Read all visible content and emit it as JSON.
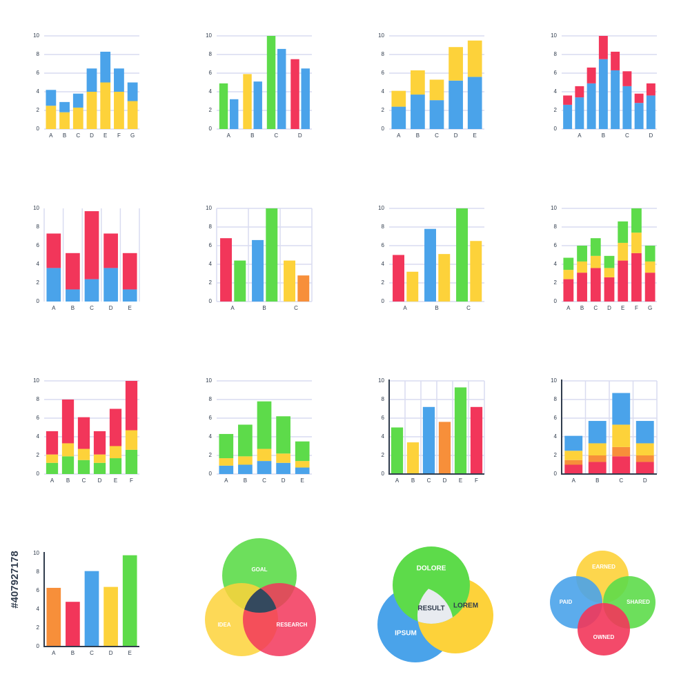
{
  "chart_data": [
    {
      "type": "bar",
      "stacked": true,
      "grid": "horizontal",
      "ylim": [
        0,
        10
      ],
      "yticks": [
        0,
        2,
        4,
        6,
        8,
        10
      ],
      "categories": [
        "A",
        "B",
        "C",
        "D",
        "E",
        "F",
        "G"
      ],
      "series": [
        {
          "color": "#fdd23a",
          "values": [
            2.5,
            1.8,
            2.3,
            4,
            5,
            4,
            3
          ]
        },
        {
          "color": "#4aa3ea",
          "values": [
            1.7,
            1.1,
            1.5,
            2.5,
            3.3,
            2.5,
            2
          ]
        }
      ]
    },
    {
      "type": "bar",
      "stacked": false,
      "grid": "horizontal",
      "ylim": [
        0,
        10
      ],
      "yticks": [
        0,
        2,
        4,
        6,
        8,
        10
      ],
      "categories": [
        "A",
        "B",
        "C",
        "D"
      ],
      "series": [
        {
          "colors": [
            "#5ddb4a",
            "#fdd23a",
            "#5ddb4a",
            "#f2365a"
          ],
          "values": [
            4.9,
            5.9,
            10,
            7.5
          ]
        },
        {
          "color": "#4aa3ea",
          "values": [
            3.2,
            5.1,
            8.6,
            6.5
          ]
        }
      ]
    },
    {
      "type": "bar",
      "stacked": true,
      "grid": "horizontal",
      "ylim": [
        0,
        10
      ],
      "yticks": [
        0,
        2,
        4,
        6,
        8,
        10
      ],
      "categories": [
        "A",
        "B",
        "C",
        "D",
        "E"
      ],
      "series": [
        {
          "color": "#4aa3ea",
          "values": [
            2.4,
            3.7,
            3.1,
            5.2,
            5.6
          ]
        },
        {
          "color": "#fdd23a",
          "values": [
            1.7,
            2.6,
            2.2,
            3.6,
            3.9
          ]
        }
      ]
    },
    {
      "type": "bar",
      "stacked": true,
      "grid": "horizontal",
      "ylim": [
        0,
        10
      ],
      "yticks": [
        0,
        2,
        4,
        6,
        8,
        10
      ],
      "categories": [
        null,
        "A",
        null,
        "B",
        null,
        "C",
        null,
        "D"
      ],
      "series": [
        {
          "color": "#4aa3ea",
          "values": [
            2.6,
            3.4,
            4.9,
            7.5,
            6.3,
            4.6,
            2.8,
            3.6
          ]
        },
        {
          "color": "#f2365a",
          "values": [
            1,
            1.2,
            1.7,
            2.5,
            2,
            1.6,
            1,
            1.3
          ]
        }
      ]
    },
    {
      "type": "bar",
      "stacked": true,
      "grid": "vertical",
      "ylim": [
        0,
        10
      ],
      "yticks": [
        0,
        2,
        4,
        6,
        8,
        10
      ],
      "categories": [
        "A",
        "B",
        "C",
        "D",
        "E"
      ],
      "series": [
        {
          "color": "#4aa3ea",
          "values": [
            3.6,
            1.3,
            2.4,
            3.6,
            1.3
          ]
        },
        {
          "color": "#f2365a",
          "values": [
            3.7,
            3.9,
            7.3,
            3.7,
            3.9
          ]
        }
      ]
    },
    {
      "type": "bar",
      "stacked": false,
      "grid": "both",
      "ylim": [
        0,
        10
      ],
      "yticks": [
        0,
        2,
        4,
        6,
        8,
        10
      ],
      "categories": [
        "A",
        "B",
        "C"
      ],
      "series": [
        {
          "colors": [
            "#f2365a",
            "#4aa3ea",
            "#fdd23a"
          ],
          "values": [
            6.8,
            6.6,
            4.4
          ]
        },
        {
          "colors": [
            "#5ddb4a",
            "#5ddb4a",
            "#f78f3a"
          ],
          "values": [
            4.4,
            10,
            2.8
          ]
        }
      ]
    },
    {
      "type": "bar",
      "stacked": false,
      "grid": "horizontal",
      "ylim": [
        0,
        10
      ],
      "yticks": [
        0,
        2,
        4,
        6,
        8,
        10
      ],
      "categories": [
        "A",
        "B",
        "C"
      ],
      "series": [
        {
          "colors": [
            "#f2365a",
            "#4aa3ea",
            "#5ddb4a"
          ],
          "values": [
            5,
            7.8,
            10
          ]
        },
        {
          "color": "#fdd23a",
          "values": [
            3.2,
            5.1,
            6.5
          ]
        }
      ]
    },
    {
      "type": "bar",
      "stacked": true,
      "grid": "horizontal",
      "ylim": [
        0,
        10
      ],
      "yticks": [
        0,
        2,
        4,
        6,
        8,
        10
      ],
      "categories": [
        "A",
        "B",
        "C",
        "D",
        "E",
        "F",
        "G"
      ],
      "series": [
        {
          "color": "#f2365a",
          "values": [
            2.4,
            3.1,
            3.6,
            2.6,
            4.4,
            5.2,
            3.1
          ]
        },
        {
          "color": "#fdd23a",
          "values": [
            1,
            1.2,
            1.3,
            1,
            1.9,
            2.2,
            1.2
          ]
        },
        {
          "color": "#5ddb4a",
          "values": [
            1.3,
            1.7,
            1.9,
            1.3,
            2.3,
            2.6,
            1.7
          ]
        }
      ]
    },
    {
      "type": "bar",
      "stacked": true,
      "grid": "horizontal",
      "ylim": [
        0,
        10
      ],
      "yticks": [
        0,
        2,
        4,
        6,
        8,
        10
      ],
      "categories": [
        "A",
        "B",
        "C",
        "D",
        "E",
        "F"
      ],
      "series": [
        {
          "color": "#5ddb4a",
          "values": [
            1.2,
            1.9,
            1.5,
            1.2,
            1.7,
            2.6
          ]
        },
        {
          "color": "#fdd23a",
          "values": [
            0.9,
            1.4,
            1.2,
            0.9,
            1.3,
            2.1
          ]
        },
        {
          "color": "#f2365a",
          "values": [
            2.5,
            4.7,
            3.4,
            2.5,
            4,
            5.3
          ]
        }
      ]
    },
    {
      "type": "bar",
      "stacked": true,
      "grid": "horizontal",
      "ylim": [
        0,
        10
      ],
      "yticks": [
        0,
        2,
        4,
        6,
        8,
        10
      ],
      "categories": [
        "A",
        "B",
        "C",
        "D",
        "E"
      ],
      "series": [
        {
          "color": "#4aa3ea",
          "values": [
            0.9,
            1,
            1.4,
            1.2,
            0.7
          ]
        },
        {
          "color": "#fdd23a",
          "values": [
            0.8,
            0.9,
            1.3,
            1,
            0.7
          ]
        },
        {
          "color": "#5ddb4a",
          "values": [
            2.6,
            3.4,
            5.1,
            4,
            2.1
          ]
        }
      ]
    },
    {
      "type": "bar",
      "stacked": true,
      "grid": "both",
      "axes": true,
      "ylim": [
        0,
        10
      ],
      "yticks": [
        0,
        2,
        4,
        6,
        8,
        10
      ],
      "categories": [
        "A",
        "B",
        "C",
        "D",
        "E",
        "F"
      ],
      "series": [
        {
          "colors": [
            "#5ddb4a",
            "#fdd23a",
            "#4aa3ea",
            "#f78f3a",
            "#5ddb4a",
            "#f2365a"
          ],
          "values": [
            5,
            3.4,
            7.2,
            5.6,
            9.3,
            7.2
          ]
        }
      ]
    },
    {
      "type": "bar",
      "stacked": true,
      "grid": "both",
      "axes": true,
      "ylim": [
        0,
        10
      ],
      "yticks": [
        0,
        2,
        4,
        6,
        8,
        10
      ],
      "categories": [
        "A",
        "B",
        "C",
        "D"
      ],
      "series": [
        {
          "color": "#f2365a",
          "values": [
            1,
            1.3,
            1.9,
            1.3
          ]
        },
        {
          "color": "#f78f3a",
          "values": [
            0.5,
            0.7,
            1,
            0.7
          ]
        },
        {
          "color": "#fdd23a",
          "values": [
            1,
            1.3,
            2.4,
            1.3
          ]
        },
        {
          "color": "#4aa3ea",
          "values": [
            1.6,
            2.4,
            3.4,
            2.4
          ]
        }
      ]
    },
    {
      "type": "bar",
      "stacked": true,
      "grid": "none",
      "axes": true,
      "ylim": [
        0,
        10
      ],
      "yticks": [
        0,
        2,
        4,
        6,
        8,
        10
      ],
      "categories": [
        "A",
        "B",
        "C",
        "D",
        "E"
      ],
      "series": [
        {
          "colors": [
            "#f78f3a",
            "#f2365a",
            "#4aa3ea",
            "#fdd23a",
            "#5ddb4a"
          ],
          "values": [
            6.3,
            4.8,
            8.1,
            6.4,
            9.8
          ]
        }
      ]
    }
  ],
  "venn_diagrams": [
    {
      "labels": [
        "GOAL",
        "IDEA",
        "RESEARCH"
      ]
    },
    {
      "labels": [
        "DOLORE",
        "IPSUM",
        "LOREM",
        "RESULT"
      ]
    },
    {
      "labels": [
        "EARNED",
        "PAID",
        "SHARED",
        "OWNED"
      ]
    }
  ],
  "stock_id": "#407927178"
}
